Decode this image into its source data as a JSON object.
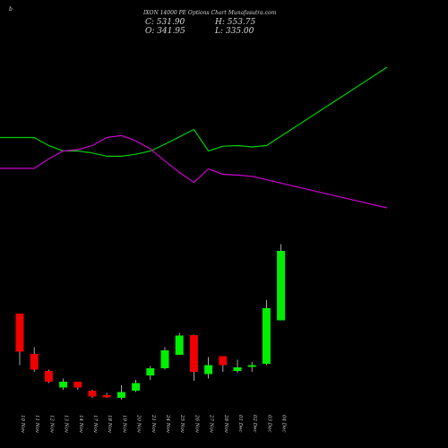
{
  "header": {
    "brand": "b",
    "title": "IXON 14000 PE Options Chart Munafasutra.com",
    "close": "C: 531.90",
    "high": "H: 553.75",
    "open": "O: 341.95",
    "low": "L: 335.00"
  },
  "chart_data": {
    "type": "candlestick",
    "title": "IXON 14000 PE Options Chart Munafasutra.com",
    "categories": [
      "10 Nov",
      "11 Nov",
      "12 Nov",
      "13 Nov",
      "14 Nov",
      "17 Nov",
      "18 Nov",
      "19 Nov",
      "20 Nov",
      "21 Nov",
      "24 Nov",
      "25 Nov",
      "26 Nov",
      "27 Nov",
      "28 Nov",
      "01 Dec",
      "02 Dec",
      "03 Dec",
      "04 Dec"
    ],
    "candles": [
      {
        "o": 510,
        "h": 508,
        "l": 395,
        "c": 425
      },
      {
        "o": 420,
        "h": 435,
        "l": 380,
        "c": 385
      },
      {
        "o": 382,
        "h": 385,
        "l": 355,
        "c": 358
      },
      {
        "o": 345,
        "h": 365,
        "l": 340,
        "c": 358
      },
      {
        "o": 358,
        "h": 358,
        "l": 340,
        "c": 345
      },
      {
        "o": 338,
        "h": 340,
        "l": 322,
        "c": 325
      },
      {
        "o": 328,
        "h": 333,
        "l": 322,
        "c": 323
      },
      {
        "o": 322,
        "h": 350,
        "l": 318,
        "c": 335
      },
      {
        "o": 338,
        "h": 362,
        "l": 335,
        "c": 355
      },
      {
        "o": 372,
        "h": 393,
        "l": 362,
        "c": 388
      },
      {
        "o": 388,
        "h": 435,
        "l": 385,
        "c": 428
      },
      {
        "o": 418,
        "h": 467,
        "l": 418,
        "c": 461
      },
      {
        "o": 462,
        "h": 463,
        "l": 360,
        "c": 380
      },
      {
        "o": 375,
        "h": 413,
        "l": 365,
        "c": 395
      },
      {
        "o": 415,
        "h": 415,
        "l": 380,
        "c": 395
      },
      {
        "o": 382,
        "h": 407,
        "l": 378,
        "c": 390
      },
      {
        "o": 392,
        "h": 402,
        "l": 380,
        "c": 395
      },
      {
        "o": 398,
        "h": 540,
        "l": 395,
        "c": 522
      },
      {
        "o": 495,
        "h": 665,
        "l": 495,
        "c": 650
      }
    ],
    "ylim": [
      300,
      700
    ],
    "series": [
      {
        "name": "",
        "color": "#00cc00",
        "values": [
          75,
          75,
          63,
          55,
          55,
          52,
          47,
          47,
          50,
          55,
          65,
          76,
          87,
          55,
          62,
          63,
          61,
          63,
          180
        ]
      },
      {
        "name": "",
        "color": "#cc00cc",
        "values": [
          29,
          29,
          43,
          55,
          57,
          63,
          75,
          78,
          70,
          58,
          40,
          23,
          8,
          28,
          20,
          19,
          17,
          12,
          -30
        ]
      }
    ],
    "grid": false
  }
}
